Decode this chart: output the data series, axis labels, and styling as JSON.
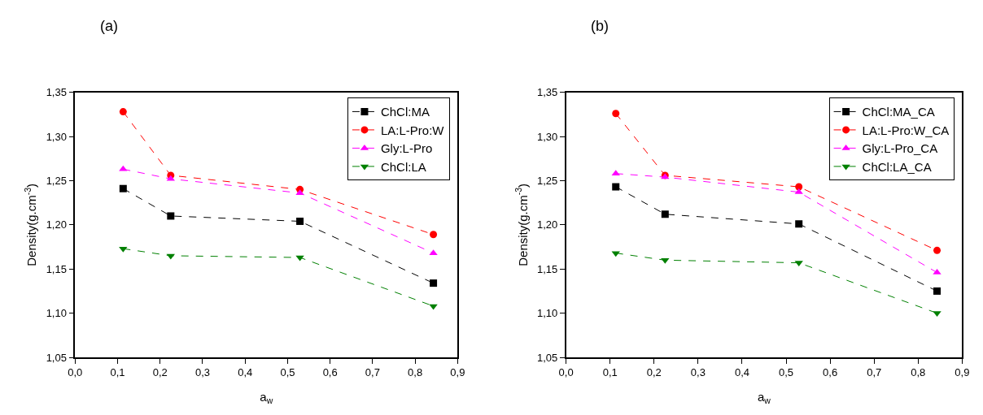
{
  "chart_data": [
    {
      "type": "line",
      "title": "(a)",
      "xlabel": "a$_{w}$",
      "ylabel": "Density(g.cm$^{-3}$)",
      "legend": "top right",
      "line_style": "dashed",
      "xlim": [
        0,
        0.9
      ],
      "ylim": [
        1.05,
        1.35
      ],
      "xticks": [
        {
          "value": 0,
          "label": "0,0"
        },
        {
          "value": 0.1,
          "label": "0,1"
        },
        {
          "value": 0.2,
          "label": "0,2"
        },
        {
          "value": 0.3,
          "label": "0,3"
        },
        {
          "value": 0.4,
          "label": "0,4"
        },
        {
          "value": 0.5,
          "label": "0,5"
        },
        {
          "value": 0.6,
          "label": "0,6"
        },
        {
          "value": 0.7,
          "label": "0,7"
        },
        {
          "value": 0.8,
          "label": "0,8"
        },
        {
          "value": 0.9,
          "label": "0,9"
        }
      ],
      "yticks": [
        {
          "value": 1.05,
          "label": "1,05"
        },
        {
          "value": 1.1,
          "label": "1,10"
        },
        {
          "value": 1.15,
          "label": "1,15"
        },
        {
          "value": 1.2,
          "label": "1,20"
        },
        {
          "value": 1.25,
          "label": "1,25"
        },
        {
          "value": 1.3,
          "label": "1,30"
        },
        {
          "value": 1.35,
          "label": "1,35"
        }
      ],
      "x": [
        0.113,
        0.225,
        0.529,
        0.843
      ],
      "series": [
        {
          "name": "ChCl:MA",
          "color": "#000000",
          "marker": "square",
          "values": [
            1.241,
            1.21,
            1.204,
            1.134
          ]
        },
        {
          "name": "LA:L-Pro:W",
          "color": "#ff0000",
          "marker": "circle",
          "values": [
            1.328,
            1.256,
            1.24,
            1.189
          ]
        },
        {
          "name": "Gly:L-Pro",
          "color": "#ff00ff",
          "marker": "triangle",
          "values": [
            1.263,
            1.252,
            1.236,
            1.168
          ]
        },
        {
          "name": "ChCl:LA",
          "color": "#008000",
          "marker": "triangle-down",
          "values": [
            1.173,
            1.165,
            1.163,
            1.108
          ]
        }
      ]
    },
    {
      "type": "line",
      "title": "(b)",
      "xlabel": "a$_{w}$",
      "ylabel": "Density(g.cm$^{-3}$)",
      "legend": "top right",
      "line_style": "dashed",
      "xlim": [
        0,
        0.9
      ],
      "ylim": [
        1.05,
        1.35
      ],
      "xticks": [
        {
          "value": 0,
          "label": "0,0"
        },
        {
          "value": 0.1,
          "label": "0,1"
        },
        {
          "value": 0.2,
          "label": "0,2"
        },
        {
          "value": 0.3,
          "label": "0,3"
        },
        {
          "value": 0.4,
          "label": "0,4"
        },
        {
          "value": 0.5,
          "label": "0,5"
        },
        {
          "value": 0.6,
          "label": "0,6"
        },
        {
          "value": 0.7,
          "label": "0,7"
        },
        {
          "value": 0.8,
          "label": "0,8"
        },
        {
          "value": 0.9,
          "label": "0,9"
        }
      ],
      "yticks": [
        {
          "value": 1.05,
          "label": "1,05"
        },
        {
          "value": 1.1,
          "label": "1,10"
        },
        {
          "value": 1.15,
          "label": "1,15"
        },
        {
          "value": 1.2,
          "label": "1,20"
        },
        {
          "value": 1.25,
          "label": "1,25"
        },
        {
          "value": 1.3,
          "label": "1,30"
        },
        {
          "value": 1.35,
          "label": "1,35"
        }
      ],
      "x": [
        0.113,
        0.225,
        0.529,
        0.843
      ],
      "series": [
        {
          "name": "ChCl:MA_CA",
          "color": "#000000",
          "marker": "square",
          "values": [
            1.243,
            1.212,
            1.201,
            1.125
          ]
        },
        {
          "name": "LA:L-Pro:W_CA",
          "color": "#ff0000",
          "marker": "circle",
          "values": [
            1.326,
            1.256,
            1.243,
            1.171
          ]
        },
        {
          "name": "Gly:L-Pro_CA",
          "color": "#ff00ff",
          "marker": "triangle",
          "values": [
            1.258,
            1.254,
            1.237,
            1.146
          ]
        },
        {
          "name": "ChCl:LA_CA",
          "color": "#008000",
          "marker": "triangle-down",
          "values": [
            1.168,
            1.16,
            1.157,
            1.1
          ]
        }
      ]
    }
  ]
}
